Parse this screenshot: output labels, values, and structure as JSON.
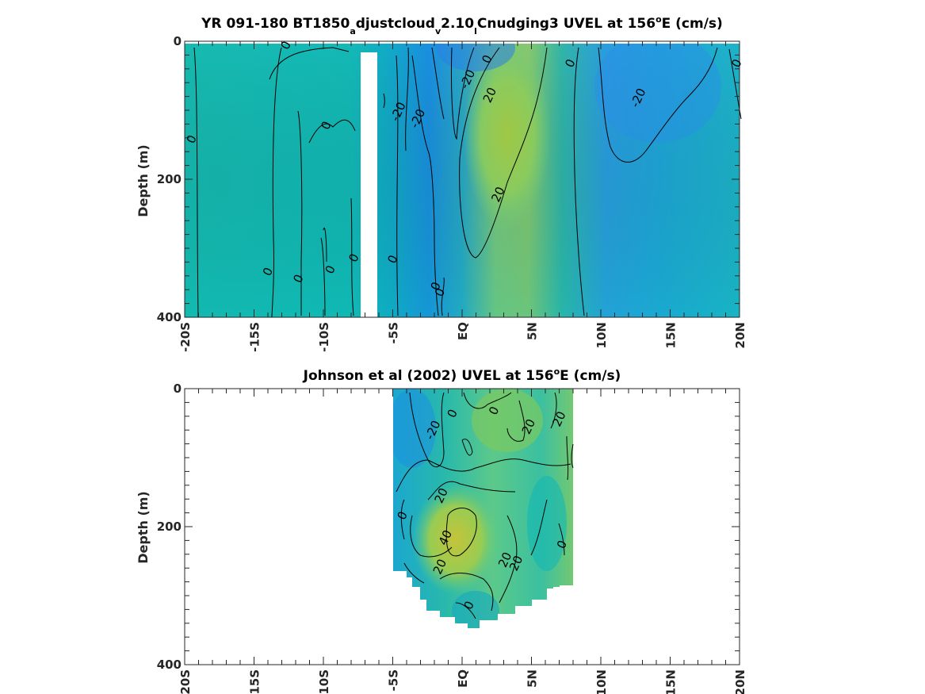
{
  "chart_data": [
    {
      "type": "heatmap",
      "title_parts": [
        "YR 091-180 BT1850",
        "a",
        "djustcloud",
        "v",
        "2.10",
        "l",
        "Cnudging3 UVEL at 156",
        "o",
        "E (cm/s)"
      ],
      "ylabel": "Depth (m)",
      "xlabel": "",
      "xlim": [
        -20,
        20
      ],
      "ylim": [
        0,
        400
      ],
      "y_reversed": true,
      "x_tick_values": [
        -20,
        -15,
        -10,
        -5,
        0,
        5,
        10,
        15,
        20
      ],
      "x_tick_labels": [
        "-20S",
        "-15S",
        "-10S",
        "-5S",
        "EQ",
        "5N",
        "10N",
        "15N",
        "20N"
      ],
      "y_tick_values": [
        0,
        200,
        400
      ],
      "y_tick_labels": [
        "0",
        "200",
        "400"
      ],
      "contour_levels": [
        -20,
        0,
        20
      ],
      "data_gap_lat": [
        -7.0,
        -5.8
      ],
      "contour_labels": [
        {
          "text": "0",
          "lat": -12.7,
          "depth": 6
        },
        {
          "text": "0",
          "lat": 7.8,
          "depth": 32
        },
        {
          "text": "0",
          "lat": 19.8,
          "depth": 32
        },
        {
          "text": "0",
          "lat": 1.8,
          "depth": 26
        },
        {
          "text": "-20",
          "lat": 0.4,
          "depth": 55
        },
        {
          "text": "20",
          "lat": 2.0,
          "depth": 78
        },
        {
          "text": "-20",
          "lat": 12.7,
          "depth": 82
        },
        {
          "text": "-20",
          "lat": -4.6,
          "depth": 102
        },
        {
          "text": "-20",
          "lat": -3.2,
          "depth": 112
        },
        {
          "text": "0",
          "lat": -9.8,
          "depth": 122
        },
        {
          "text": "0",
          "lat": -19.5,
          "depth": 142
        },
        {
          "text": "20",
          "lat": 2.6,
          "depth": 222
        },
        {
          "text": "0",
          "lat": -7.8,
          "depth": 314
        },
        {
          "text": "0",
          "lat": -5.0,
          "depth": 316
        },
        {
          "text": "0",
          "lat": -14.0,
          "depth": 334
        },
        {
          "text": "0",
          "lat": -11.8,
          "depth": 344
        },
        {
          "text": "0",
          "lat": -9.5,
          "depth": 331
        },
        {
          "text": "0",
          "lat": -1.9,
          "depth": 355
        },
        {
          "text": "0",
          "lat": -1.6,
          "depth": 364
        }
      ]
    },
    {
      "type": "heatmap",
      "title_parts": [
        "Johnson et al (2002) UVEL at 156",
        "o",
        "E (cm/s)"
      ],
      "ylabel": "Depth (m)",
      "xlabel": "",
      "xlim": [
        -20,
        20
      ],
      "ylim": [
        0,
        400
      ],
      "y_reversed": true,
      "x_tick_values": [
        -20,
        -15,
        -10,
        -5,
        0,
        5,
        10,
        15,
        20
      ],
      "x_tick_labels": [
        "-20S",
        "-15S",
        "-10S",
        "-5S",
        "EQ",
        "5N",
        "10N",
        "15N",
        "20N"
      ],
      "y_tick_values": [
        0,
        200,
        400
      ],
      "y_tick_labels": [
        "0",
        "200",
        "400"
      ],
      "contour_levels": [
        -20,
        0,
        20,
        40
      ],
      "data_lat_range": [
        -5,
        8
      ],
      "contour_labels": [
        {
          "text": "0",
          "lat": -0.7,
          "depth": 36
        },
        {
          "text": "0",
          "lat": 2.3,
          "depth": 32
        },
        {
          "text": "20",
          "lat": 7.0,
          "depth": 44
        },
        {
          "text": "20",
          "lat": 4.8,
          "depth": 55
        },
        {
          "text": "-20",
          "lat": -2.1,
          "depth": 60
        },
        {
          "text": "20",
          "lat": -1.5,
          "depth": 155
        },
        {
          "text": "0",
          "lat": -4.3,
          "depth": 184
        },
        {
          "text": "40",
          "lat": -1.2,
          "depth": 216
        },
        {
          "text": "0",
          "lat": 7.2,
          "depth": 226
        },
        {
          "text": "20",
          "lat": 3.1,
          "depth": 248
        },
        {
          "text": "20",
          "lat": 3.9,
          "depth": 253
        },
        {
          "text": "20",
          "lat": -1.6,
          "depth": 258
        },
        {
          "text": "0",
          "lat": 0.5,
          "depth": 314
        }
      ]
    }
  ]
}
